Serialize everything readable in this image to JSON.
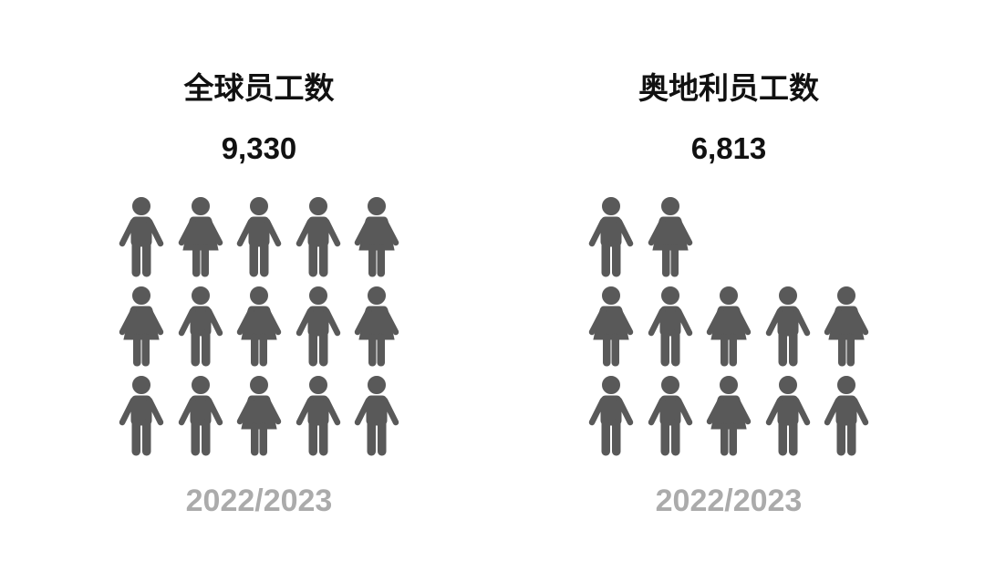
{
  "colors": {
    "icon": "#595959",
    "title": "#111111",
    "year": "#ababab"
  },
  "panels": [
    {
      "title": "全球员工数",
      "count": "9,330",
      "year": "2022/2023",
      "rows": [
        [
          "man",
          "woman",
          "man",
          "man",
          "woman"
        ],
        [
          "woman",
          "man",
          "woman",
          "man",
          "woman"
        ],
        [
          "man",
          "man",
          "woman",
          "man",
          "man"
        ]
      ]
    },
    {
      "title": "奥地利员工数",
      "count": "6,813",
      "year": "2022/2023",
      "rows": [
        [
          "man",
          "woman",
          null,
          null,
          null
        ],
        [
          "woman",
          "man",
          "woman",
          "man",
          "woman"
        ],
        [
          "man",
          "man",
          "woman",
          "man",
          "man"
        ]
      ]
    }
  ]
}
